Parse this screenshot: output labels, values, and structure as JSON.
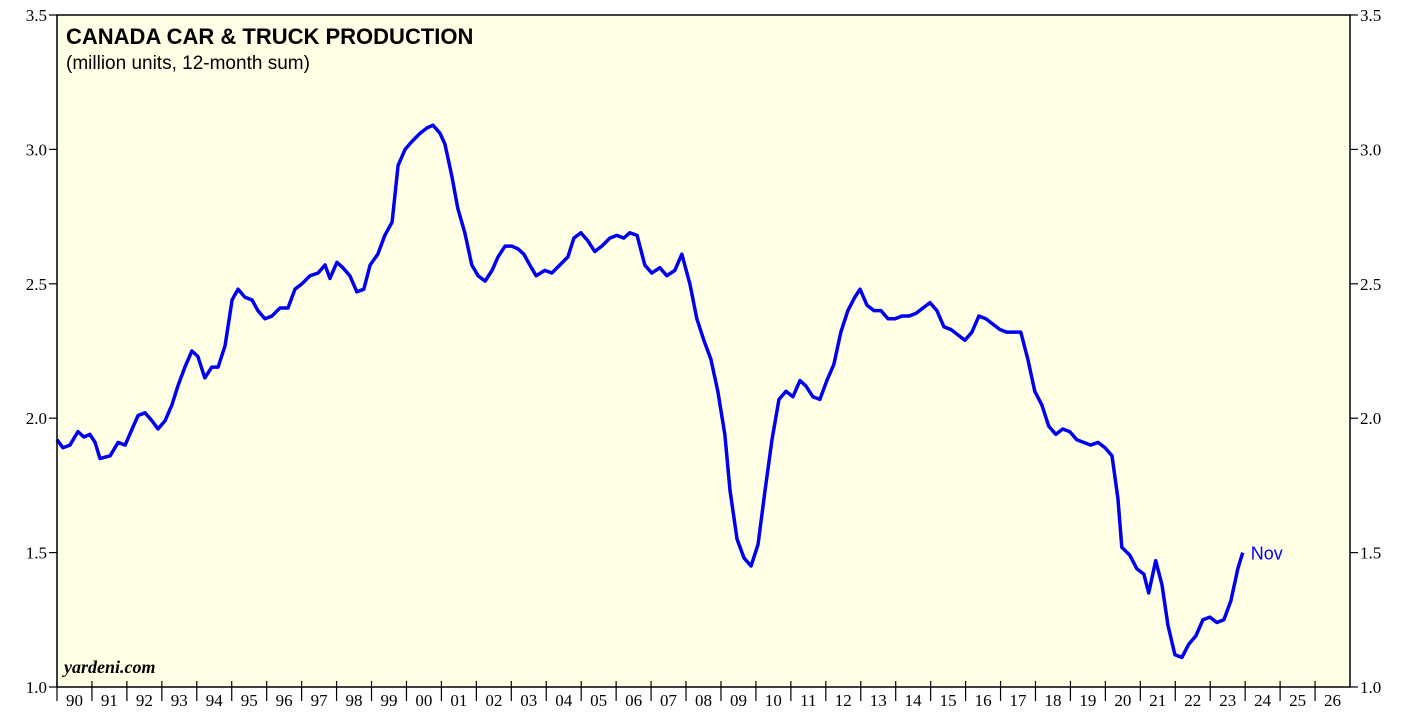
{
  "chart_data": {
    "type": "line",
    "title": "CANADA CAR & TRUCK PRODUCTION",
    "subtitle": "(million units, 12-month sum)",
    "source": "yardeni.com",
    "annotation": "Nov",
    "background": "#ffffe6",
    "xlim": [
      1990,
      2027
    ],
    "xticks": [
      {
        "value": 1990,
        "label": "90"
      },
      {
        "value": 1991,
        "label": "91"
      },
      {
        "value": 1992,
        "label": "92"
      },
      {
        "value": 1993,
        "label": "93"
      },
      {
        "value": 1994,
        "label": "94"
      },
      {
        "value": 1995,
        "label": "95"
      },
      {
        "value": 1996,
        "label": "96"
      },
      {
        "value": 1997,
        "label": "97"
      },
      {
        "value": 1998,
        "label": "98"
      },
      {
        "value": 1999,
        "label": "99"
      },
      {
        "value": 2000,
        "label": "00"
      },
      {
        "value": 2001,
        "label": "01"
      },
      {
        "value": 2002,
        "label": "02"
      },
      {
        "value": 2003,
        "label": "03"
      },
      {
        "value": 2004,
        "label": "04"
      },
      {
        "value": 2005,
        "label": "05"
      },
      {
        "value": 2006,
        "label": "06"
      },
      {
        "value": 2007,
        "label": "07"
      },
      {
        "value": 2008,
        "label": "08"
      },
      {
        "value": 2009,
        "label": "09"
      },
      {
        "value": 2010,
        "label": "10"
      },
      {
        "value": 2011,
        "label": "11"
      },
      {
        "value": 2012,
        "label": "12"
      },
      {
        "value": 2013,
        "label": "13"
      },
      {
        "value": 2014,
        "label": "14"
      },
      {
        "value": 2015,
        "label": "15"
      },
      {
        "value": 2016,
        "label": "16"
      },
      {
        "value": 2017,
        "label": "17"
      },
      {
        "value": 2018,
        "label": "18"
      },
      {
        "value": 2019,
        "label": "19"
      },
      {
        "value": 2020,
        "label": "20"
      },
      {
        "value": 2021,
        "label": "21"
      },
      {
        "value": 2022,
        "label": "22"
      },
      {
        "value": 2023,
        "label": "23"
      },
      {
        "value": 2024,
        "label": "24"
      },
      {
        "value": 2025,
        "label": "25"
      },
      {
        "value": 2026,
        "label": "26"
      }
    ],
    "ylim": [
      1,
      3.5
    ],
    "yticks": [
      {
        "value": 1,
        "label": "1.0"
      },
      1.5,
      {
        "value": 2,
        "label": "2.0"
      },
      2.5,
      {
        "value": 3,
        "label": "3.0"
      },
      3.5
    ],
    "x": [
      1990.0,
      1990.17,
      1990.37,
      1990.6,
      1990.77,
      1990.94,
      1991.09,
      1991.23,
      1991.52,
      1991.75,
      1991.95,
      1992.15,
      1992.32,
      1992.52,
      1992.72,
      1992.89,
      1993.09,
      1993.29,
      1993.46,
      1993.66,
      1993.86,
      1994.03,
      1994.23,
      1994.43,
      1994.61,
      1994.81,
      1995.01,
      1995.18,
      1995.38,
      1995.58,
      1995.75,
      1995.95,
      1996.15,
      1996.38,
      1996.61,
      1996.81,
      1997.01,
      1997.24,
      1997.47,
      1997.67,
      1997.81,
      1998.01,
      1998.18,
      1998.38,
      1998.58,
      1998.78,
      1998.96,
      1999.18,
      1999.38,
      1999.59,
      1999.76,
      1999.96,
      2000.16,
      2000.39,
      2000.59,
      2000.76,
      2000.96,
      2001.1,
      2001.3,
      2001.47,
      2001.67,
      2001.87,
      2002.05,
      2002.25,
      2002.45,
      2002.62,
      2002.82,
      2003.02,
      2003.19,
      2003.36,
      2003.53,
      2003.71,
      2003.96,
      2004.16,
      2004.39,
      2004.62,
      2004.79,
      2004.99,
      2005.19,
      2005.39,
      2005.59,
      2005.82,
      2006.02,
      2006.22,
      2006.39,
      2006.6,
      2006.82,
      2007.02,
      2007.25,
      2007.45,
      2007.68,
      2007.88,
      2008.11,
      2008.31,
      2008.51,
      2008.71,
      2008.91,
      2009.11,
      2009.26,
      2009.46,
      2009.66,
      2009.86,
      2010.06,
      2010.26,
      2010.46,
      2010.66,
      2010.86,
      2011.06,
      2011.26,
      2011.43,
      2011.63,
      2011.83,
      2012.03,
      2012.23,
      2012.43,
      2012.63,
      2012.83,
      2012.98,
      2013.18,
      2013.38,
      2013.58,
      2013.78,
      2013.98,
      2014.18,
      2014.38,
      2014.58,
      2014.78,
      2014.98,
      2015.18,
      2015.38,
      2015.58,
      2015.78,
      2015.98,
      2016.18,
      2016.38,
      2016.58,
      2016.78,
      2016.98,
      2017.18,
      2017.38,
      2017.58,
      2017.78,
      2017.98,
      2018.18,
      2018.38,
      2018.58,
      2018.78,
      2018.98,
      2019.18,
      2019.38,
      2019.58,
      2019.79,
      2019.99,
      2020.19,
      2020.36,
      2020.47,
      2020.7,
      2020.9,
      2021.1,
      2021.24,
      2021.44,
      2021.62,
      2021.79,
      2021.99,
      2022.19,
      2022.39,
      2022.59,
      2022.79,
      2022.99,
      2023.19,
      2023.39,
      2023.59,
      2023.79,
      2023.93
    ],
    "series": [
      {
        "color": "#0000ee",
        "values": [
          1.92,
          1.89,
          1.9,
          1.95,
          1.93,
          1.94,
          1.91,
          1.85,
          1.86,
          1.91,
          1.9,
          1.96,
          2.01,
          2.02,
          1.99,
          1.96,
          1.99,
          2.05,
          2.12,
          2.19,
          2.25,
          2.23,
          2.15,
          2.19,
          2.19,
          2.27,
          2.44,
          2.48,
          2.45,
          2.44,
          2.4,
          2.37,
          2.38,
          2.41,
          2.41,
          2.48,
          2.5,
          2.53,
          2.54,
          2.57,
          2.52,
          2.58,
          2.56,
          2.53,
          2.47,
          2.48,
          2.57,
          2.61,
          2.68,
          2.73,
          2.94,
          3.0,
          3.03,
          3.06,
          3.08,
          3.09,
          3.06,
          3.02,
          2.9,
          2.78,
          2.69,
          2.57,
          2.53,
          2.51,
          2.55,
          2.6,
          2.64,
          2.64,
          2.63,
          2.61,
          2.57,
          2.53,
          2.55,
          2.54,
          2.57,
          2.6,
          2.67,
          2.69,
          2.66,
          2.62,
          2.64,
          2.67,
          2.68,
          2.67,
          2.69,
          2.68,
          2.57,
          2.54,
          2.56,
          2.53,
          2.55,
          2.61,
          2.5,
          2.37,
          2.29,
          2.22,
          2.1,
          1.94,
          1.73,
          1.55,
          1.48,
          1.45,
          1.53,
          1.73,
          1.92,
          2.07,
          2.1,
          2.08,
          2.14,
          2.12,
          2.08,
          2.07,
          2.14,
          2.2,
          2.32,
          2.4,
          2.45,
          2.48,
          2.42,
          2.4,
          2.4,
          2.37,
          2.37,
          2.38,
          2.38,
          2.39,
          2.41,
          2.43,
          2.4,
          2.34,
          2.33,
          2.31,
          2.29,
          2.32,
          2.38,
          2.37,
          2.35,
          2.33,
          2.32,
          2.32,
          2.32,
          2.22,
          2.1,
          2.05,
          1.97,
          1.94,
          1.96,
          1.95,
          1.92,
          1.91,
          1.9,
          1.91,
          1.89,
          1.86,
          1.7,
          1.52,
          1.49,
          1.44,
          1.42,
          1.35,
          1.47,
          1.38,
          1.23,
          1.12,
          1.11,
          1.16,
          1.19,
          1.25,
          1.26,
          1.24,
          1.25,
          1.32,
          1.44,
          1.5
        ]
      }
    ]
  }
}
